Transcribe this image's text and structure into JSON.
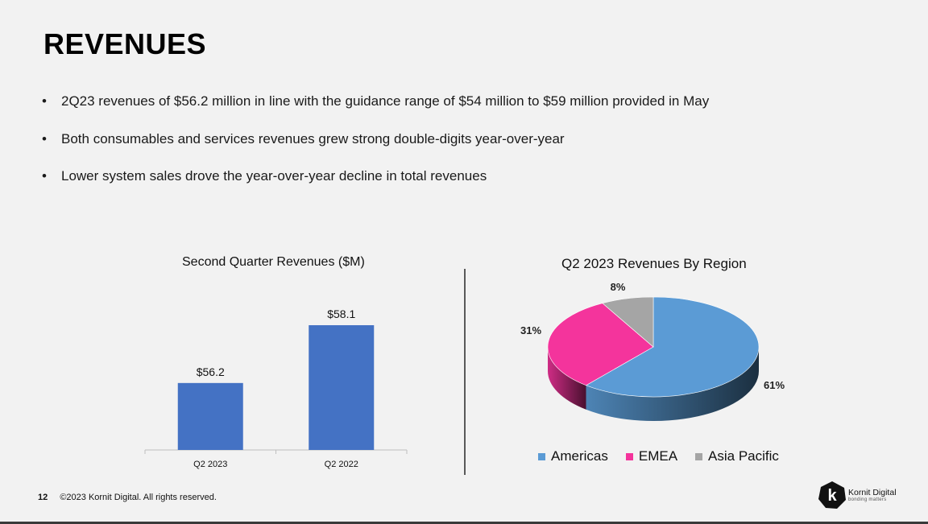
{
  "slide": {
    "title": "REVENUES",
    "bullets": [
      "2Q23 revenues of $56.2 million in line with the guidance range of $54 million to $59 million provided in May",
      "Both consumables and services revenues grew strong double-digits year-over-year",
      "Lower system sales drove the year-over-year decline in total revenues"
    ],
    "bullet_glyph": "•",
    "page_number": "12",
    "copyright": "©2023  Kornit Digital.  All rights reserved.",
    "logo": {
      "name": "Kornit Digital",
      "tagline": "bonding matters",
      "letter": "k"
    }
  },
  "chart_data": [
    {
      "type": "bar",
      "title": "Second Quarter Revenues ($M)",
      "categories": [
        "Q2 2023",
        "Q2 2022"
      ],
      "values": [
        56.2,
        58.1
      ],
      "data_labels": [
        "$56.2",
        "$58.1"
      ],
      "color": "#4472c4",
      "ylim": [
        54,
        59
      ],
      "grid": false
    },
    {
      "type": "pie",
      "title": "Q2 2023 Revenues By Region",
      "categories": [
        "Americas",
        "EMEA",
        "Asia Pacific"
      ],
      "values": [
        61,
        31,
        8
      ],
      "data_labels": [
        "61%",
        "31%",
        "8%"
      ],
      "colors": [
        "#5b9bd5",
        "#f4349c",
        "#a5a5a5"
      ],
      "legend_position": "bottom"
    }
  ]
}
